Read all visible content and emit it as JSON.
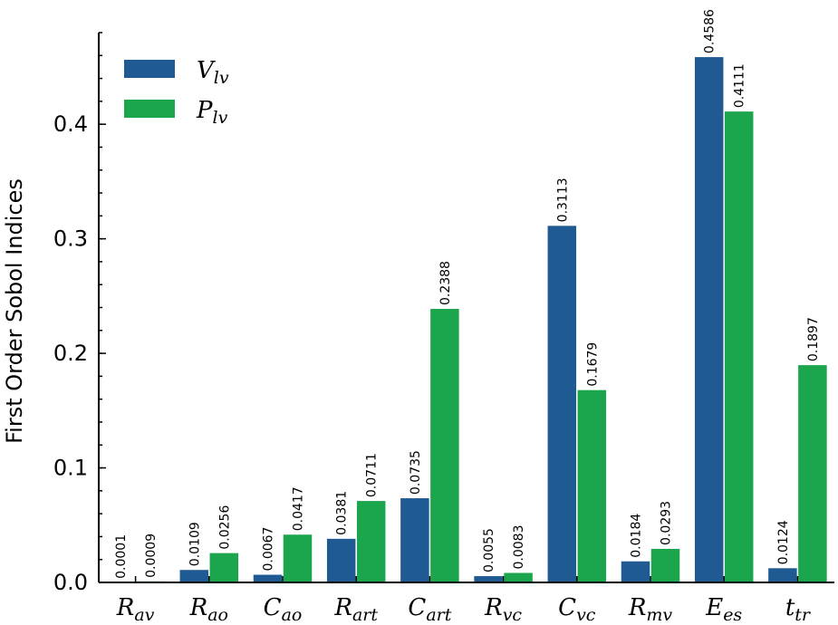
{
  "chart_data": {
    "type": "bar",
    "title": "",
    "xlabel": "",
    "ylabel": "First Order Sobol Indices",
    "ylim": [
      0,
      0.48
    ],
    "yticks": [
      "0.0",
      "0.1",
      "0.2",
      "0.3",
      "0.4"
    ],
    "ytick_values": [
      0.0,
      0.1,
      0.2,
      0.3,
      0.4
    ],
    "grid": false,
    "legend_position": "top-left",
    "categories": [
      {
        "main": "R",
        "sub": "av"
      },
      {
        "main": "R",
        "sub": "ao"
      },
      {
        "main": "C",
        "sub": "ao"
      },
      {
        "main": "R",
        "sub": "art"
      },
      {
        "main": "C",
        "sub": "art"
      },
      {
        "main": "R",
        "sub": "vc"
      },
      {
        "main": "C",
        "sub": "vc"
      },
      {
        "main": "R",
        "sub": "mv"
      },
      {
        "main": "E",
        "sub": "es"
      },
      {
        "main": "t",
        "sub": "tr"
      }
    ],
    "series": [
      {
        "name_main": "V",
        "name_sub": "lv",
        "color": "#1f5b92",
        "values": [
          0.0001,
          0.0109,
          0.0067,
          0.0381,
          0.0735,
          0.0055,
          0.3113,
          0.0184,
          0.4586,
          0.0124
        ],
        "labels": [
          "0.0001",
          "0.0109",
          "0.0067",
          "0.0381",
          "0.0735",
          "0.0055",
          "0.3113",
          "0.0184",
          "0.4586",
          "0.0124"
        ]
      },
      {
        "name_main": "P",
        "name_sub": "lv",
        "color": "#1ba54d",
        "values": [
          0.0009,
          0.0256,
          0.0417,
          0.0711,
          0.2388,
          0.0083,
          0.1679,
          0.0293,
          0.4111,
          0.1897
        ],
        "labels": [
          "0.0009",
          "0.0256",
          "0.0417",
          "0.0711",
          "0.2388",
          "0.0083",
          "0.1679",
          "0.0293",
          "0.4111",
          "0.1897"
        ]
      }
    ]
  }
}
